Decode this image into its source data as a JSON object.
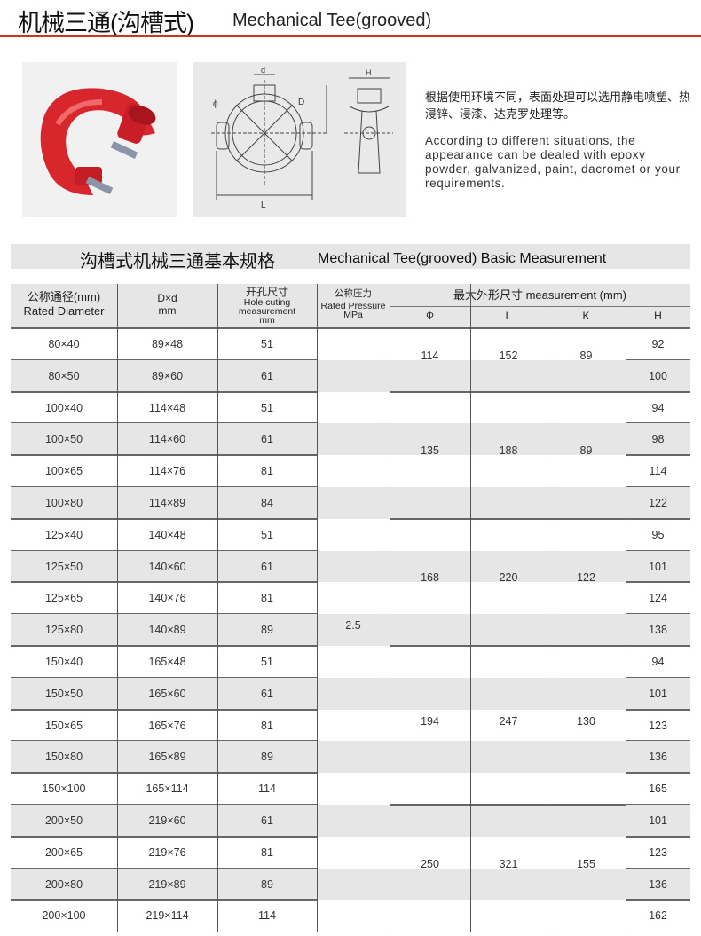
{
  "header": {
    "title_cn": "机械三通(沟槽式)",
    "title_en": "Mechanical Tee(grooved)"
  },
  "images": {
    "photo": "red mechanical tee fitting photo",
    "drawing_labels": {
      "d": "d",
      "phi": "ϕ",
      "D": "D",
      "L": "L",
      "H": "H"
    }
  },
  "description": {
    "cn": "根据使用环境不同，表面处理可以选用静电喷塑、热浸锌、浸漆、达克罗处理等。",
    "en": "According to different situations, the appearance can be dealed with epoxy powder, galvanized, paint, dacromet or your requirements."
  },
  "section": {
    "title_cn": "沟槽式机械三通基本规格",
    "title_en": "Mechanical Tee(grooved) Basic Measurement"
  },
  "table": {
    "headers": {
      "rated_cn": "公称通径(mm)",
      "rated_en": "Rated Diameter",
      "dxd": "D×d",
      "dxd_unit": "mm",
      "hole_cn": "开孔尺寸",
      "hole_en1": "Hole cuting",
      "hole_en2": "measurement",
      "hole_unit": "mm",
      "pressure_cn": "公称压力",
      "pressure_en": "Rated Pressure",
      "pressure_unit": "MPa",
      "meas": "最大外形尺寸 measurement (mm)",
      "phi": "Φ",
      "L": "L",
      "K": "K",
      "H": "H"
    },
    "pressure": "2.5",
    "rows": [
      [
        "80×40",
        "89×48",
        "51",
        "92"
      ],
      [
        "80×50",
        "89×60",
        "61",
        "100"
      ],
      [
        "100×40",
        "114×48",
        "51",
        "94"
      ],
      [
        "100×50",
        "114×60",
        "61",
        "98"
      ],
      [
        "100×65",
        "114×76",
        "81",
        "114"
      ],
      [
        "100×80",
        "114×89",
        "84",
        "122"
      ],
      [
        "125×40",
        "140×48",
        "51",
        "95"
      ],
      [
        "125×50",
        "140×60",
        "61",
        "101"
      ],
      [
        "125×65",
        "140×76",
        "81",
        "124"
      ],
      [
        "125×80",
        "140×89",
        "89",
        "138"
      ],
      [
        "150×40",
        "165×48",
        "51",
        "94"
      ],
      [
        "150×50",
        "165×60",
        "61",
        "101"
      ],
      [
        "150×65",
        "165×76",
        "81",
        "123"
      ],
      [
        "150×80",
        "165×89",
        "89",
        "136"
      ],
      [
        "150×100",
        "165×114",
        "114",
        "165"
      ],
      [
        "200×50",
        "219×60",
        "61",
        "101"
      ],
      [
        "200×65",
        "219×76",
        "81",
        "123"
      ],
      [
        "200×80",
        "219×89",
        "89",
        "136"
      ],
      [
        "200×100",
        "219×114",
        "114",
        "162"
      ]
    ],
    "groups": [
      {
        "rows": 2,
        "phi": "114",
        "L": "152",
        "K": "89"
      },
      {
        "rows": 4,
        "phi": "135",
        "L": "188",
        "K": "89"
      },
      {
        "rows": 4,
        "phi": "168",
        "L": "220",
        "K": "122"
      },
      {
        "rows": 5,
        "phi": "194",
        "L": "247",
        "K": "130"
      },
      {
        "rows": 4,
        "phi": "250",
        "L": "321",
        "K": "155"
      }
    ],
    "colors": {
      "stripe": "#e6e6e6",
      "accent_rule": "#c8361f"
    }
  }
}
